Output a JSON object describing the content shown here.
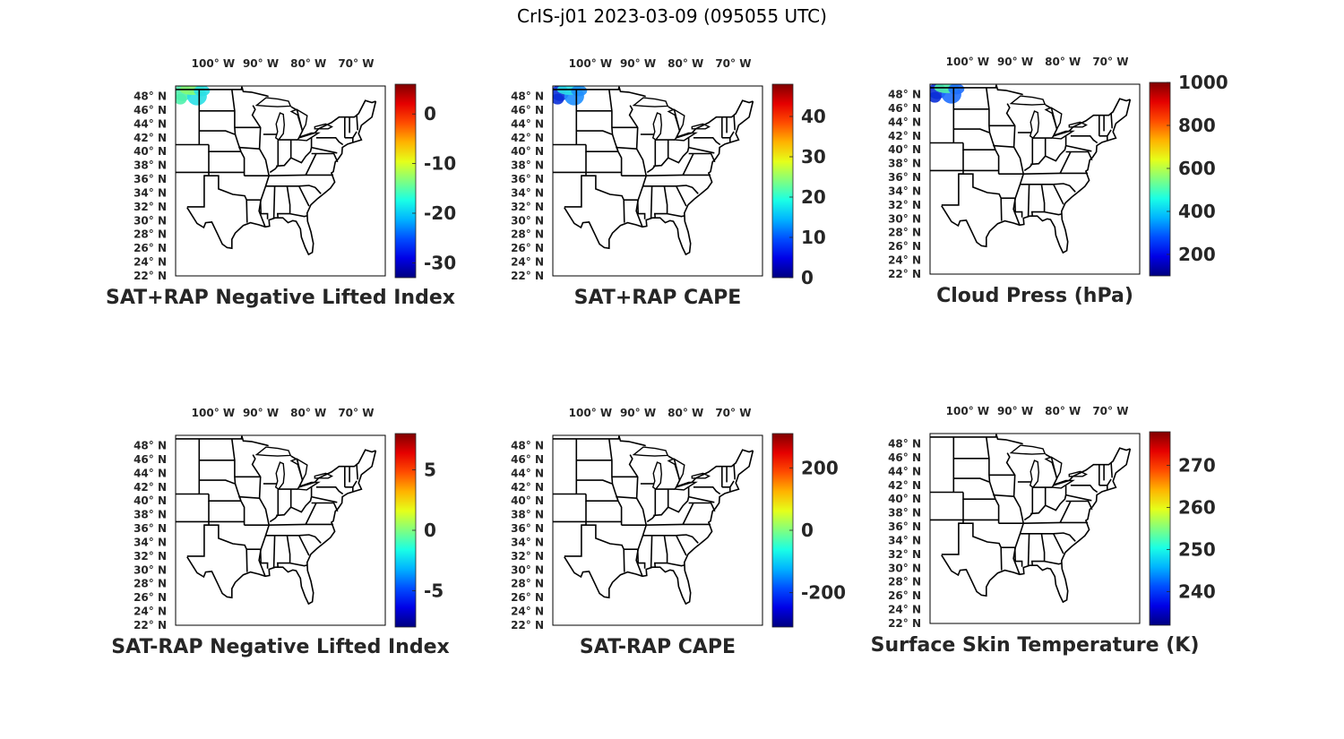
{
  "figure": {
    "title": "CrIS-j01 2023-03-09 (095055 UTC)"
  },
  "colors": {
    "frame": "#000000",
    "text": "#262626",
    "colormap": "jet"
  },
  "lon_labels": [
    "100° W",
    "90° W",
    "80° W",
    "70° W"
  ],
  "lon_values": [
    100,
    90,
    80,
    70
  ],
  "lat_labels": [
    "48° N",
    "46° N",
    "44° N",
    "42° N",
    "40° N",
    "38° N",
    "36° N",
    "34° N",
    "32° N",
    "30° N",
    "28° N",
    "26° N",
    "24° N",
    "22° N"
  ],
  "lat_values": [
    48,
    46,
    44,
    42,
    40,
    38,
    36,
    34,
    32,
    30,
    28,
    26,
    24,
    22
  ],
  "map_extent": {
    "lon_min": -109,
    "lon_max": -65,
    "lat_min": 22,
    "lat_max": 49.5
  },
  "panels": [
    {
      "title": "SAT+RAP Negative Lifted Index",
      "colorbar": {
        "ticks": [
          "0",
          "-10",
          "-20",
          "-30"
        ],
        "tick_values": [
          0,
          -10,
          -20,
          -30
        ],
        "range": [
          -33,
          6
        ]
      },
      "data_patch": {
        "present": true,
        "region": "north-western corner (ND/MT border)",
        "dominant_colors": [
          "#4ff2ac",
          "#2ae0e6",
          "#86ff70"
        ]
      }
    },
    {
      "title": "SAT+RAP CAPE",
      "colorbar": {
        "ticks": [
          "0",
          "10",
          "20",
          "30",
          "40"
        ],
        "tick_values": [
          0,
          10,
          20,
          30,
          40
        ],
        "range": [
          0,
          48
        ]
      },
      "data_patch": {
        "present": true,
        "region": "north-western corner (ND/MT border)",
        "dominant_colors": [
          "#0a2fd8",
          "#1e8fff",
          "#2ae0e6"
        ]
      }
    },
    {
      "title": "Cloud Press (hPa)",
      "colorbar": {
        "ticks": [
          "1000",
          "800",
          "600",
          "400",
          "200"
        ],
        "tick_values": [
          1000,
          800,
          600,
          400,
          200
        ],
        "range": [
          100,
          1000
        ]
      },
      "data_patch": {
        "present": true,
        "region": "north-western corner (ND/MT border)",
        "dominant_colors": [
          "#0a2fd8",
          "#1e6fff",
          "#4ff2ac"
        ]
      }
    },
    {
      "title": "SAT-RAP Negative Lifted Index",
      "colorbar": {
        "ticks": [
          "5",
          "0",
          "-5"
        ],
        "tick_values": [
          5,
          0,
          -5
        ],
        "range": [
          -8,
          8
        ]
      },
      "data_patch": {
        "present": false
      }
    },
    {
      "title": "SAT-RAP CAPE",
      "colorbar": {
        "ticks": [
          "200",
          "0",
          "-200"
        ],
        "tick_values": [
          200,
          0,
          -200
        ],
        "range": [
          -310,
          310
        ]
      },
      "data_patch": {
        "present": false
      }
    },
    {
      "title": "Surface Skin Temperature (K)",
      "colorbar": {
        "ticks": [
          "270",
          "260",
          "250",
          "240"
        ],
        "tick_values": [
          270,
          260,
          250,
          240
        ],
        "range": [
          232,
          278
        ]
      },
      "data_patch": {
        "present": false
      }
    }
  ]
}
